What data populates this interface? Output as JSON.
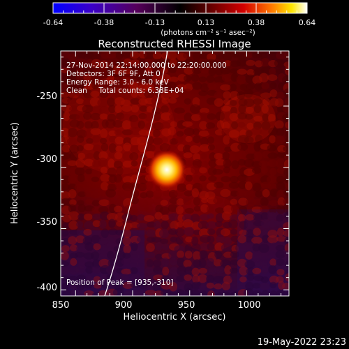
{
  "colorbar": {
    "tick_labels": [
      "-0.64",
      "-0.38",
      "-0.13",
      "0.13",
      "0.38",
      "0.64"
    ],
    "units": "(photons cm⁻² s⁻¹ asec⁻²)",
    "range": [
      -0.64,
      0.64
    ],
    "stops": [
      "#0000ff",
      "#4b00b4",
      "#5a0050",
      "#000000",
      "#5a0000",
      "#c80000",
      "#ff7800",
      "#ffe600",
      "#ffffff"
    ]
  },
  "plot": {
    "title": "Reconstructed RHESSI Image",
    "info_lines": [
      "27-Nov-2014 22:14:00.000 to 22:20:00.000",
      "Detectors: 3F 6F 9F, Att 0",
      "Energy Range: 3.0 - 6.0 keV",
      "Clean     Total counts: 6.38E+04"
    ],
    "peak_label": "Position of Peak = [935,-310]",
    "xlabel": "Heliocentric X (arcsec)",
    "ylabel": "Heliocentric Y (arcsec)",
    "xticks": [
      "850",
      "900",
      "950",
      "1000"
    ],
    "yticks": [
      "-250",
      "-300",
      "-350",
      "-400"
    ],
    "xrange": [
      837,
      1037
    ],
    "yrange": [
      -405,
      -205
    ]
  },
  "timestamp": "19-May-2022 23:23"
}
